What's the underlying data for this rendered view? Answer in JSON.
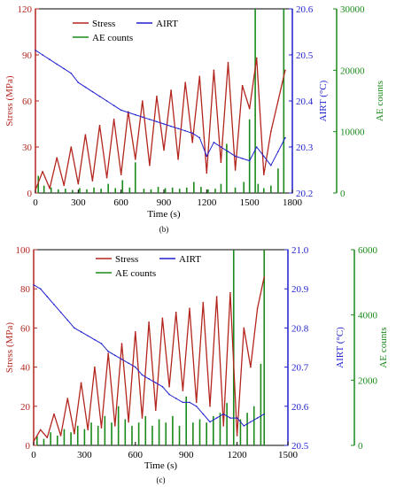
{
  "colors": {
    "stress": "#b3261e",
    "airt": "#1f1fcf",
    "ae": "#1a8a1a",
    "text": "#000000"
  },
  "chart_data": [
    {
      "type": "line",
      "panel_label": "(b)",
      "xlabel": "Time (s)",
      "ylabel_left": "Stress (MPa)",
      "ylabel_right1": "AIRT (°C)",
      "ylabel_right2": "AE counts",
      "xlim": [
        0,
        1800
      ],
      "x_ticks": [
        0,
        300,
        600,
        900,
        1200,
        1500,
        1800
      ],
      "y_left_lim": [
        0,
        120
      ],
      "y_left_ticks": [
        0,
        30,
        60,
        90,
        120
      ],
      "y_right1_lim": [
        20.2,
        20.6
      ],
      "y_right1_ticks": [
        "20.2",
        "20.3",
        "20.4",
        "20.5",
        "20.6"
      ],
      "y_right2_lim": [
        0,
        30000
      ],
      "y_right2_ticks": [
        0,
        10000,
        20000,
        30000
      ],
      "legend": [
        "Stress",
        "AIRT",
        "AE counts"
      ],
      "series": [
        {
          "name": "Stress",
          "axis": "left",
          "x": [
            0,
            50,
            100,
            150,
            200,
            250,
            300,
            350,
            400,
            450,
            500,
            550,
            600,
            650,
            700,
            750,
            800,
            850,
            900,
            950,
            1000,
            1050,
            1100,
            1150,
            1200,
            1250,
            1300,
            1350,
            1400,
            1450,
            1500,
            1550,
            1600,
            1650,
            1700,
            1750
          ],
          "y": [
            2,
            14,
            3,
            23,
            5,
            30,
            6,
            38,
            8,
            44,
            10,
            48,
            12,
            53,
            22,
            60,
            18,
            63,
            28,
            67,
            22,
            72,
            33,
            76,
            13,
            80,
            20,
            85,
            15,
            70,
            55,
            88,
            12,
            40,
            60,
            80
          ]
        },
        {
          "name": "AIRT",
          "axis": "right1",
          "x": [
            0,
            50,
            100,
            150,
            200,
            250,
            300,
            350,
            400,
            450,
            500,
            550,
            600,
            650,
            700,
            750,
            800,
            850,
            900,
            950,
            1000,
            1050,
            1100,
            1150,
            1200,
            1250,
            1300,
            1350,
            1400,
            1450,
            1500,
            1550,
            1600,
            1650,
            1700,
            1750
          ],
          "y": [
            20.51,
            20.5,
            20.49,
            20.48,
            20.47,
            20.46,
            20.44,
            20.43,
            20.42,
            20.41,
            20.4,
            20.39,
            20.38,
            20.375,
            20.37,
            20.365,
            20.36,
            20.355,
            20.35,
            20.345,
            20.34,
            20.335,
            20.33,
            20.32,
            20.28,
            20.31,
            20.3,
            20.29,
            20.28,
            20.275,
            20.27,
            20.3,
            20.28,
            20.26,
            20.29,
            20.32
          ]
        },
        {
          "name": "AE counts",
          "axis": "right2",
          "x": [
            20,
            60,
            110,
            160,
            210,
            260,
            310,
            360,
            410,
            460,
            510,
            560,
            610,
            660,
            700,
            760,
            810,
            860,
            910,
            960,
            1010,
            1060,
            1110,
            1160,
            1210,
            1260,
            1300,
            1340,
            1400,
            1460,
            1500,
            1540,
            1560,
            1600,
            1650,
            1700,
            1740
          ],
          "y": [
            2800,
            1200,
            900,
            600,
            700,
            500,
            800,
            600,
            900,
            700,
            1500,
            800,
            2100,
            900,
            5000,
            700,
            600,
            1000,
            800,
            900,
            700,
            900,
            1800,
            1000,
            600,
            700,
            1500,
            8000,
            900,
            1800,
            12000,
            30000,
            1500,
            800,
            1200,
            4000,
            30000
          ]
        }
      ]
    },
    {
      "type": "line",
      "panel_label": "(c)",
      "xlabel": "Time (s)",
      "ylabel_left": "Stress (MPa)",
      "ylabel_right1": "AIRT (°C)",
      "ylabel_right2": "AE counts",
      "xlim": [
        0,
        1500
      ],
      "x_ticks": [
        0,
        300,
        600,
        900,
        1200,
        1500
      ],
      "y_left_lim": [
        0,
        100
      ],
      "y_left_ticks": [
        0,
        20,
        40,
        60,
        80,
        100
      ],
      "y_right1_lim": [
        20.5,
        21.0
      ],
      "y_right1_ticks": [
        "20.5",
        "20.6",
        "20.7",
        "20.8",
        "20.9",
        "21.0"
      ],
      "y_right2_lim": [
        0,
        6000
      ],
      "y_right2_ticks": [
        0,
        2000,
        4000,
        6000
      ],
      "legend": [
        "Stress",
        "AIRT",
        "AE counts"
      ],
      "series": [
        {
          "name": "Stress",
          "axis": "left",
          "x": [
            0,
            40,
            80,
            120,
            160,
            200,
            240,
            280,
            320,
            360,
            400,
            440,
            480,
            520,
            560,
            600,
            640,
            680,
            720,
            760,
            800,
            840,
            880,
            920,
            960,
            1000,
            1040,
            1080,
            1120,
            1160,
            1200,
            1240,
            1280,
            1320,
            1360
          ],
          "y": [
            2,
            8,
            4,
            16,
            5,
            24,
            6,
            32,
            8,
            40,
            9,
            47,
            10,
            52,
            12,
            58,
            14,
            63,
            18,
            65,
            30,
            68,
            28,
            70,
            22,
            73,
            20,
            76,
            10,
            78,
            5,
            60,
            40,
            70,
            86
          ]
        },
        {
          "name": "AIRT",
          "axis": "right1",
          "x": [
            0,
            40,
            80,
            120,
            160,
            200,
            240,
            280,
            320,
            360,
            400,
            440,
            480,
            520,
            560,
            600,
            640,
            680,
            720,
            760,
            800,
            840,
            880,
            920,
            960,
            1000,
            1040,
            1080,
            1120,
            1160,
            1200,
            1240,
            1280,
            1320,
            1360
          ],
          "y": [
            20.91,
            20.9,
            20.88,
            20.86,
            20.84,
            20.82,
            20.8,
            20.79,
            20.78,
            20.77,
            20.76,
            20.74,
            20.73,
            20.72,
            20.71,
            20.7,
            20.68,
            20.67,
            20.66,
            20.65,
            20.63,
            20.62,
            20.61,
            20.61,
            20.6,
            20.58,
            20.56,
            20.57,
            20.58,
            20.57,
            20.57,
            20.55,
            20.56,
            20.57,
            20.58
          ]
        },
        {
          "name": "AE counts",
          "axis": "right2",
          "x": [
            20,
            60,
            100,
            140,
            180,
            220,
            260,
            300,
            340,
            380,
            420,
            460,
            500,
            540,
            580,
            620,
            660,
            700,
            740,
            780,
            820,
            860,
            900,
            940,
            980,
            1020,
            1060,
            1100,
            1140,
            1180,
            1220,
            1260,
            1300,
            1340,
            1360
          ],
          "y": [
            300,
            200,
            400,
            300,
            500,
            400,
            600,
            500,
            700,
            600,
            900,
            700,
            1200,
            800,
            600,
            700,
            900,
            600,
            800,
            700,
            900,
            600,
            1500,
            700,
            800,
            700,
            900,
            1000,
            1300,
            6000,
            800,
            1000,
            1200,
            2500,
            6000
          ]
        }
      ]
    }
  ]
}
